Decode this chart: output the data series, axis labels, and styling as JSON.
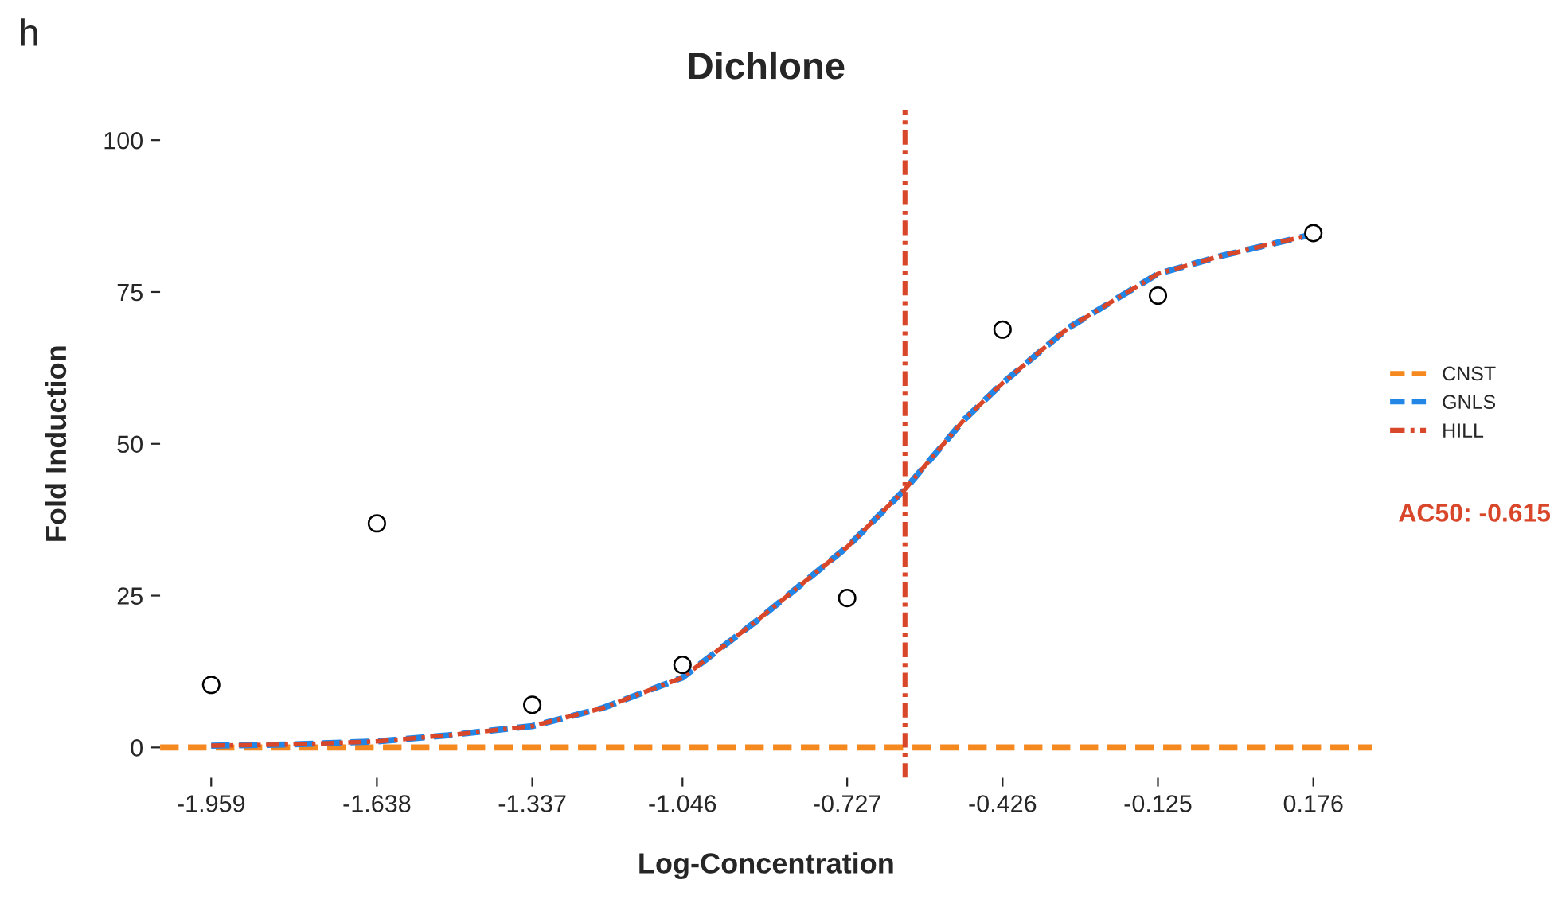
{
  "chart_data": {
    "type": "line",
    "title": "Dichlone",
    "xlabel": "Log-Concentration",
    "ylabel": "Fold Induction",
    "xlim": [
      -2.058,
      0.29
    ],
    "ylim": [
      -5,
      105
    ],
    "xticks": [
      {
        "value": -1.959,
        "label": "-1.959"
      },
      {
        "value": -1.638,
        "label": "-1.638"
      },
      {
        "value": -1.337,
        "label": "-1.337"
      },
      {
        "value": -1.046,
        "label": "-1.046"
      },
      {
        "value": -0.727,
        "label": "-0.727"
      },
      {
        "value": -0.426,
        "label": "-0.426"
      },
      {
        "value": -0.125,
        "label": "-0.125"
      },
      {
        "value": 0.176,
        "label": "0.176"
      }
    ],
    "yticks": [
      0,
      25,
      50,
      75,
      100
    ],
    "grid": false,
    "legend": "right",
    "series": [
      {
        "type": "scatter",
        "marker": "circle",
        "color": "#000000",
        "x": [
          -1.959,
          -1.638,
          -1.337,
          -1.046,
          -0.727,
          -0.426,
          -0.125,
          0.176
        ],
        "values": [
          10.3,
          36.9,
          7.0,
          13.6,
          24.6,
          68.8,
          74.4,
          84.7
        ]
      },
      {
        "name": "CNST",
        "line_style": "dashed",
        "color": "#f5891f",
        "x": [
          -2.058,
          0.29
        ],
        "values": [
          0,
          0
        ]
      },
      {
        "name": "GNLS",
        "line_style": "dashed",
        "color": "#2186e6",
        "x": [
          -1.959,
          -1.8,
          -1.638,
          -1.5,
          -1.337,
          -1.2,
          -1.046,
          -0.9,
          -0.727,
          -0.615,
          -0.5,
          -0.426,
          -0.3,
          -0.125,
          0,
          0.176
        ],
        "values": [
          0.3,
          0.5,
          1,
          2,
          3.5,
          6.5,
          11.5,
          21,
          33,
          42.5,
          54,
          60,
          69,
          78,
          81,
          84.5
        ]
      },
      {
        "name": "HILL",
        "line_style": "dashdot",
        "color": "#d9472b",
        "x": [
          -1.959,
          -1.8,
          -1.638,
          -1.5,
          -1.337,
          -1.2,
          -1.046,
          -0.9,
          -0.727,
          -0.615,
          -0.5,
          -0.426,
          -0.3,
          -0.125,
          0,
          0.176
        ],
        "values": [
          0.3,
          0.5,
          1,
          2,
          3.5,
          6.5,
          11.5,
          21,
          33,
          42.5,
          54,
          60,
          69,
          78,
          81,
          84.5
        ]
      }
    ],
    "ref_lines": [
      {
        "axis": "x",
        "value": -0.615,
        "label": "AC50: -0.615",
        "color": "#d9472b",
        "line_style": "dashdot"
      }
    ],
    "annotations": [
      "h"
    ]
  }
}
